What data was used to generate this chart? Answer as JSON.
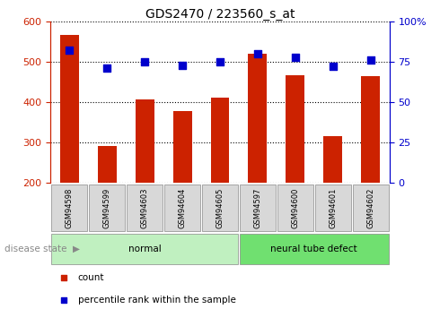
{
  "title": "GDS2470 / 223560_s_at",
  "samples": [
    "GSM94598",
    "GSM94599",
    "GSM94603",
    "GSM94604",
    "GSM94605",
    "GSM94597",
    "GSM94600",
    "GSM94601",
    "GSM94602"
  ],
  "counts": [
    568,
    290,
    407,
    378,
    410,
    520,
    467,
    316,
    465
  ],
  "percentiles": [
    82,
    71,
    75,
    73,
    75,
    80,
    78,
    72,
    76
  ],
  "groups": [
    {
      "label": "normal",
      "indices": [
        0,
        4
      ],
      "color": "#c0f0c0"
    },
    {
      "label": "neural tube defect",
      "indices": [
        5,
        8
      ],
      "color": "#70e070"
    }
  ],
  "ylim_left": [
    200,
    600
  ],
  "ylim_right": [
    0,
    100
  ],
  "yticks_left": [
    200,
    300,
    400,
    500,
    600
  ],
  "yticks_right": [
    0,
    25,
    50,
    75,
    100
  ],
  "ytick_labels_right": [
    "0",
    "25",
    "50",
    "75",
    "100%"
  ],
  "bar_color": "#cc2200",
  "dot_color": "#0000cc",
  "bar_width": 0.5,
  "dot_size": 35,
  "legend_items": [
    {
      "label": "count",
      "color": "#cc2200"
    },
    {
      "label": "percentile rank within the sample",
      "color": "#0000cc"
    }
  ],
  "tick_label_color_left": "#cc2200",
  "tick_label_color_right": "#0000cc",
  "background_plot": "#ffffff",
  "background_xtick": "#d8d8d8"
}
